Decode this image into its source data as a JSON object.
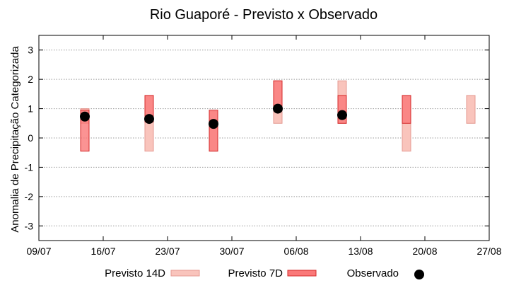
{
  "chart_data": {
    "type": "range-bar",
    "title": "Rio Guaporé - Previsto x Observado",
    "xlabel": "",
    "ylabel": "Anomalia de Precipitação Categorizada",
    "ylim": [
      -3.5,
      3.5
    ],
    "yticks": [
      -3,
      -2,
      -1,
      0,
      1,
      2,
      3
    ],
    "xlim": [
      "2024-07-09",
      "2024-08-27"
    ],
    "xtick_labels": [
      "09/07",
      "16/07",
      "23/07",
      "30/07",
      "06/08",
      "13/08",
      "20/08",
      "27/08"
    ],
    "grid": "horizontal dotted",
    "legend_position": "bottom",
    "colors": {
      "p14_fill": "#f9c4bc",
      "p14_stroke": "#e59a92",
      "p7_fill": "#fa7878",
      "p7_stroke": "#d42a2a",
      "observed": "#000000",
      "grid": "#9a9a9a"
    },
    "series": [
      {
        "name": "Previsto 14D",
        "kind": "range",
        "points": [
          {
            "x": "2024-07-14",
            "low": 0.5,
            "high": 1.0
          },
          {
            "x": "2024-07-21",
            "low": -0.45,
            "high": 1.45
          },
          {
            "x": "2024-07-28",
            "low": -0.45,
            "high": 0.9
          },
          {
            "x": "2024-08-04",
            "low": 0.5,
            "high": 1.95
          },
          {
            "x": "2024-08-11",
            "low": 0.5,
            "high": 1.95
          },
          {
            "x": "2024-08-18",
            "low": -0.45,
            "high": 1.45
          },
          {
            "x": "2024-08-25",
            "low": 0.5,
            "high": 1.45
          }
        ]
      },
      {
        "name": "Previsto 7D",
        "kind": "range",
        "points": [
          {
            "x": "2024-07-14",
            "low": -0.45,
            "high": 0.95
          },
          {
            "x": "2024-07-21",
            "low": 0.55,
            "high": 1.45
          },
          {
            "x": "2024-07-28",
            "low": -0.45,
            "high": 0.95
          },
          {
            "x": "2024-08-04",
            "low": 1.0,
            "high": 1.95
          },
          {
            "x": "2024-08-11",
            "low": 0.5,
            "high": 1.45
          },
          {
            "x": "2024-08-18",
            "low": 0.5,
            "high": 1.45
          }
        ]
      },
      {
        "name": "Observado",
        "kind": "point",
        "points": [
          {
            "x": "2024-07-14",
            "y": 0.73
          },
          {
            "x": "2024-07-21",
            "y": 0.65
          },
          {
            "x": "2024-07-28",
            "y": 0.48
          },
          {
            "x": "2024-08-04",
            "y": 1.0
          },
          {
            "x": "2024-08-11",
            "y": 0.78
          }
        ]
      }
    ]
  }
}
